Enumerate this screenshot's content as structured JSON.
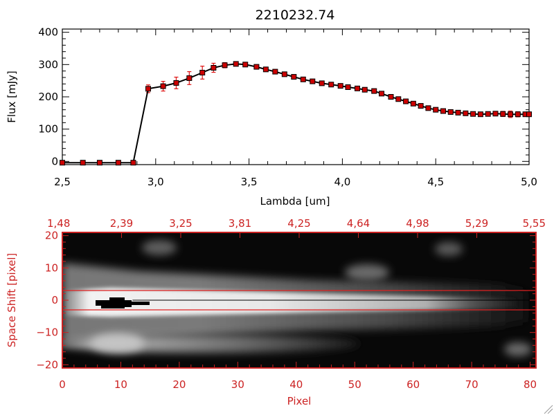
{
  "chart_data": [
    {
      "type": "line",
      "title": "2210232.74",
      "xlabel": "Lambda [um]",
      "ylabel": "Flux [mJy]",
      "xlim": [
        2.5,
        5.0
      ],
      "ylim": [
        -10,
        410
      ],
      "xticks": [
        2.5,
        3.0,
        3.5,
        4.0,
        4.5,
        5.0
      ],
      "xtick_labels": [
        "2,5",
        "3,0",
        "3,5",
        "4,0",
        "4,5",
        "5,0"
      ],
      "yticks": [
        0,
        100,
        200,
        300,
        400
      ],
      "ytick_labels": [
        "0",
        "100",
        "200",
        "300",
        "400"
      ],
      "series_color": "#000000",
      "marker_color": "#cc0000",
      "errorbar_color": "#dd1111",
      "x": [
        2.5,
        2.61,
        2.7,
        2.8,
        2.88,
        2.96,
        3.04,
        3.11,
        3.18,
        3.25,
        3.31,
        3.37,
        3.43,
        3.48,
        3.54,
        3.59,
        3.64,
        3.69,
        3.74,
        3.79,
        3.84,
        3.89,
        3.94,
        3.99,
        4.03,
        4.08,
        4.12,
        4.17,
        4.21,
        4.26,
        4.3,
        4.34,
        4.38,
        4.42,
        4.46,
        4.5,
        4.54,
        4.58,
        4.62,
        4.66,
        4.7,
        4.74,
        4.78,
        4.82,
        4.86,
        4.9,
        4.94,
        4.98,
        5.0
      ],
      "y": [
        -4,
        -4,
        -4,
        -4,
        -4,
        225,
        233,
        243,
        258,
        275,
        290,
        298,
        302,
        300,
        293,
        285,
        278,
        270,
        262,
        254,
        248,
        242,
        238,
        234,
        230,
        226,
        222,
        218,
        210,
        200,
        193,
        186,
        179,
        172,
        165,
        160,
        156,
        153,
        151,
        149,
        147,
        146,
        147,
        148,
        147,
        146,
        146,
        146,
        146
      ],
      "err": [
        0,
        0,
        0,
        0,
        0,
        12,
        15,
        18,
        20,
        20,
        14,
        8,
        5,
        5,
        5,
        5,
        5,
        5,
        5,
        5,
        5,
        5,
        5,
        5,
        5,
        5,
        5,
        5,
        5,
        5,
        5,
        5,
        5,
        5,
        5,
        5,
        5,
        5,
        5,
        5,
        5,
        5,
        5,
        5,
        8,
        10,
        8,
        5,
        5
      ]
    },
    {
      "type": "heatmap",
      "xlabel": "Pixel",
      "ylabel": "Space Shift [pixel]",
      "xlim": [
        0,
        81
      ],
      "ylim": [
        -21,
        21
      ],
      "xticks": [
        0,
        10,
        20,
        30,
        40,
        50,
        60,
        70,
        80
      ],
      "xtick_labels": [
        "0",
        "10",
        "20",
        "30",
        "40",
        "50",
        "60",
        "70",
        "80"
      ],
      "yticks": [
        -20,
        -10,
        0,
        10,
        20
      ],
      "ytick_labels": [
        "−20",
        "−10",
        "0",
        "10",
        "20"
      ],
      "top_axis_values": [
        1.48,
        2.39,
        3.25,
        3.81,
        4.25,
        4.64,
        4.98,
        5.29,
        5.55
      ],
      "top_axis_labels": [
        "1,48",
        "2,39",
        "3,25",
        "3,81",
        "4,25",
        "4,64",
        "4,98",
        "5,29",
        "5,55"
      ],
      "extraction_lines_y": [
        3,
        -3
      ],
      "center_line_y": 0,
      "axis_color": "#cc2222",
      "line_color": "#e02020"
    }
  ]
}
